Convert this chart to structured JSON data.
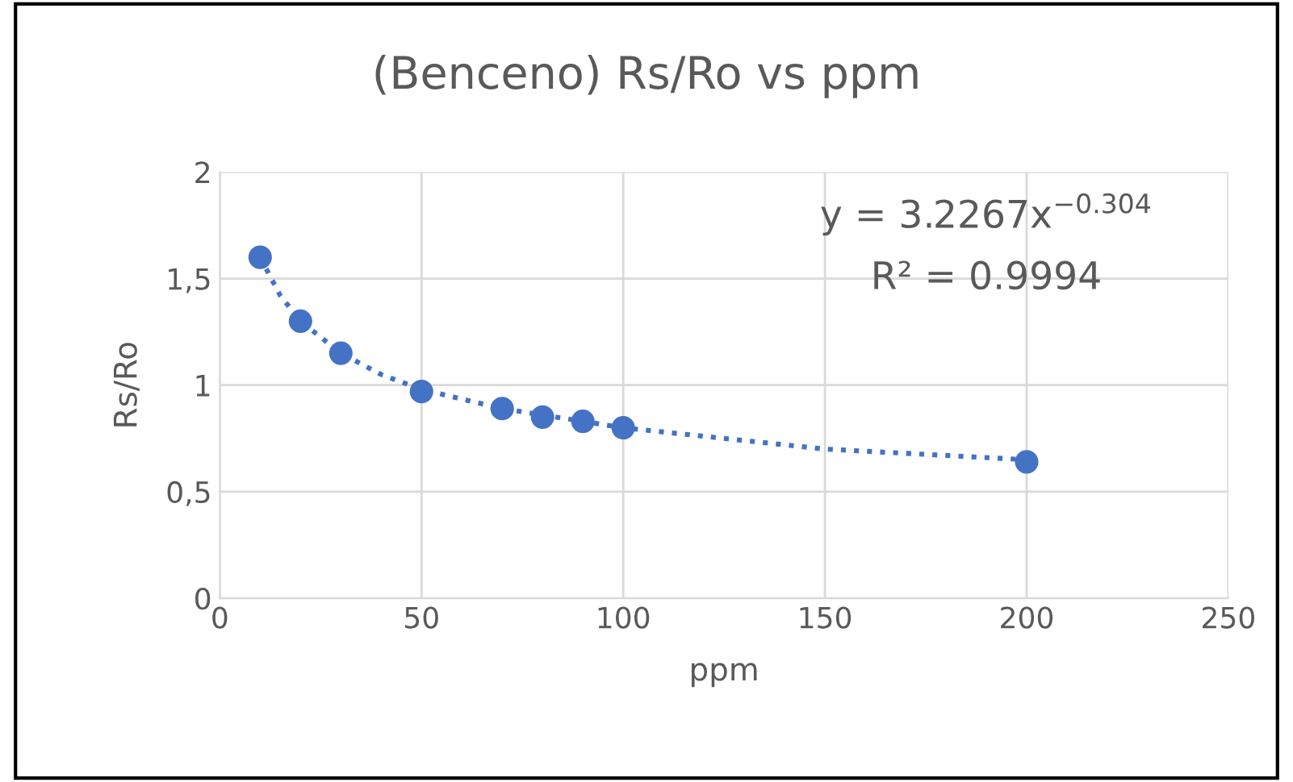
{
  "chart_data": {
    "type": "scatter",
    "title": "(Benceno) Rs/Ro vs ppm",
    "xlabel": "ppm",
    "ylabel": "Rs/Ro",
    "series": [
      {
        "type": "scatter",
        "color": "#4472c4",
        "marker": "circle",
        "x": [
          10,
          20,
          30,
          50,
          70,
          80,
          90,
          100,
          200
        ],
        "values": [
          1.6,
          1.3,
          1.15,
          0.97,
          0.89,
          0.85,
          0.83,
          0.8,
          0.64
        ]
      },
      {
        "type": "line",
        "color": "#4472c4",
        "line_style": "dotted",
        "x": [
          10,
          15,
          20,
          30,
          40,
          50,
          70,
          100,
          150,
          200
        ],
        "values": [
          1.6,
          1.42,
          1.3,
          1.15,
          1.05,
          0.98,
          0.89,
          0.8,
          0.7,
          0.65
        ]
      }
    ],
    "xlim": [
      0,
      250
    ],
    "xticks": [
      0,
      50,
      100,
      150,
      200,
      250
    ],
    "ylim": [
      0,
      2
    ],
    "yticks": [
      0,
      {
        "value": 0.5,
        "label": "0,5"
      },
      1,
      {
        "value": 1.5,
        "label": "1,5"
      },
      2
    ],
    "grid": true,
    "annotations": [
      "y = 3.2267x$^{−0.304}$",
      "R² = 0.9994"
    ]
  }
}
